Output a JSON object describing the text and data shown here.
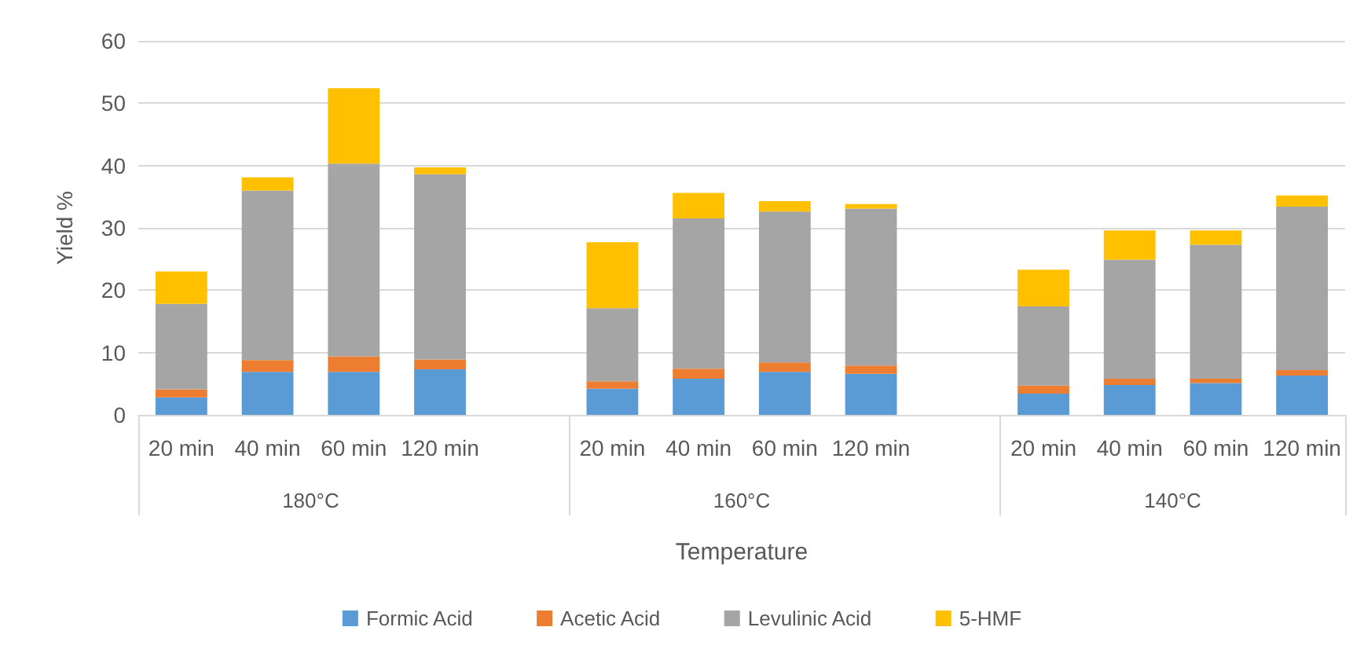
{
  "chart_data": {
    "type": "bar",
    "stacked": true,
    "xlabel": "Temperature",
    "ylabel": "Yield %",
    "categories": [
      "20 min",
      "40 min",
      "60 min",
      "120 min",
      null,
      "20 min",
      "40 min",
      "60 min",
      "120 min",
      null,
      "20 min",
      "40 min",
      "60 min",
      "120 min"
    ],
    "annotations": [
      "180°C",
      "160°C",
      "140°C"
    ],
    "series": [
      {
        "name": "Formic Acid",
        "color": "#5b9bd5",
        "values": [
          2.8,
          6.9,
          6.9,
          7.3,
          null,
          4.2,
          5.8,
          6.9,
          6.6,
          null,
          3.4,
          4.8,
          5.1,
          6.3
        ]
      },
      {
        "name": "Acetic Acid",
        "color": "#ed7d31",
        "values": [
          1.3,
          1.9,
          2.5,
          1.6,
          null,
          1.2,
          1.6,
          1.5,
          1.3,
          null,
          1.3,
          1.0,
          0.7,
          0.9
        ]
      },
      {
        "name": "Levulinic Acid",
        "color": "#a5a5a5",
        "values": [
          13.7,
          27.2,
          30.9,
          29.7,
          null,
          11.7,
          24.1,
          24.2,
          25.2,
          null,
          12.7,
          19.1,
          21.5,
          26.2
        ]
      },
      {
        "name": "5-HMF",
        "color": "#ffc000",
        "values": [
          5.2,
          2.1,
          12.1,
          1.1,
          null,
          10.6,
          4.1,
          1.7,
          0.7,
          null,
          5.9,
          4.7,
          2.3,
          1.8
        ]
      }
    ],
    "ylim": [
      0,
      60
    ],
    "yticks": [
      0,
      10,
      20,
      30,
      40,
      50,
      60
    ],
    "grid": "y",
    "legend": "bottom"
  }
}
